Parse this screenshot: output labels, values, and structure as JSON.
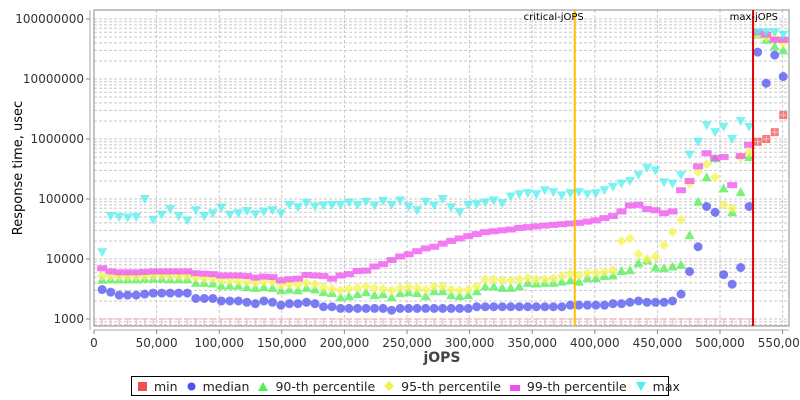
{
  "chart_data": {
    "type": "scatter",
    "title": "",
    "xlabel": "jOPS",
    "ylabel": "Response time, usec",
    "xscale": "linear",
    "yscale": "log",
    "xlim": [
      0,
      556000
    ],
    "ylim": [
      700,
      150000000
    ],
    "grid": true,
    "legend_position": "bottom",
    "x_ticks": [
      "0",
      "50,000",
      "100,000",
      "150,000",
      "200,000",
      "250,000",
      "300,000",
      "350,000",
      "400,000",
      "450,000",
      "500,000",
      "550,000"
    ],
    "y_ticks": [
      "1000",
      "10000",
      "100000",
      "1000000",
      "10000000",
      "100000000"
    ],
    "annotations": [
      {
        "label": "critical-jOPS",
        "x": 384000,
        "color": "#ffc000"
      },
      {
        "label": "max-jOPS",
        "x": 526400,
        "color": "#e00000"
      }
    ],
    "x": [
      6500,
      13300,
      20100,
      26900,
      33700,
      40500,
      47300,
      54100,
      60900,
      67700,
      74500,
      81300,
      88100,
      94900,
      101700,
      108500,
      115300,
      122100,
      128900,
      135700,
      142500,
      149300,
      156100,
      162900,
      169700,
      176500,
      183300,
      190100,
      196900,
      203700,
      210500,
      217300,
      224100,
      230900,
      237700,
      244500,
      251300,
      258100,
      264900,
      271700,
      278500,
      285300,
      292100,
      298900,
      305700,
      312500,
      319300,
      326100,
      332900,
      339700,
      346500,
      353300,
      360100,
      366900,
      373700,
      380500,
      387300,
      394100,
      400900,
      407700,
      414500,
      421300,
      428100,
      434900,
      441700,
      448500,
      455300,
      462100,
      468900,
      475700,
      482500,
      489300,
      496100,
      502900,
      509700,
      516500,
      523300,
      530100,
      536900,
      543700,
      550500
    ],
    "series": [
      {
        "name": "min",
        "color": "#f05050",
        "marker": "square",
        "values": [
          1000,
          1000,
          1000,
          1000,
          1000,
          1000,
          1000,
          1000,
          1000,
          1000,
          1000,
          1000,
          1000,
          1000,
          1000,
          1000,
          1000,
          1000,
          1000,
          1000,
          1000,
          1000,
          1000,
          1000,
          1000,
          1000,
          1000,
          1000,
          1000,
          1000,
          1000,
          1000,
          1000,
          1000,
          1000,
          1000,
          1000,
          1000,
          1000,
          1000,
          1000,
          1000,
          1000,
          1000,
          1000,
          1000,
          1000,
          1000,
          1000,
          1000,
          1000,
          1000,
          1000,
          1000,
          1000,
          1000,
          1000,
          1000,
          1000,
          1000,
          1000,
          1000,
          1000,
          1000,
          1000,
          1000,
          1000,
          1000,
          1000,
          1000,
          1000,
          1000,
          1000,
          1000,
          1000,
          1000,
          1000,
          900000,
          1000000,
          1300000,
          2500000
        ]
      },
      {
        "name": "median",
        "color": "#5050f0",
        "marker": "circle",
        "values": [
          3100,
          2800,
          2500,
          2500,
          2500,
          2600,
          2700,
          2700,
          2700,
          2700,
          2700,
          2200,
          2200,
          2200,
          2000,
          2000,
          2000,
          1900,
          1800,
          2000,
          1900,
          1700,
          1800,
          1800,
          1900,
          1800,
          1600,
          1600,
          1500,
          1500,
          1500,
          1500,
          1500,
          1500,
          1400,
          1500,
          1500,
          1500,
          1500,
          1500,
          1500,
          1500,
          1500,
          1500,
          1600,
          1600,
          1600,
          1600,
          1600,
          1600,
          1600,
          1600,
          1600,
          1600,
          1600,
          1700,
          1700,
          1700,
          1700,
          1700,
          1800,
          1800,
          1900,
          2000,
          1900,
          1900,
          1900,
          2000,
          2600,
          6200,
          16000,
          75000,
          60000,
          5500,
          3800,
          7200,
          75000,
          28000000,
          8500000,
          25000000,
          11000000
        ]
      },
      {
        "name": "90-th percentile",
        "color": "#50f050",
        "marker": "triangle-up",
        "values": [
          4500,
          4600,
          4600,
          4600,
          4600,
          4700,
          4700,
          4700,
          4600,
          4600,
          4600,
          4000,
          4000,
          3900,
          3600,
          3600,
          3600,
          3400,
          3300,
          3400,
          3300,
          3000,
          3100,
          3000,
          3300,
          3100,
          2800,
          2700,
          2300,
          2400,
          2600,
          2800,
          2500,
          2600,
          2300,
          2700,
          2800,
          2700,
          2400,
          2900,
          2900,
          2500,
          2400,
          2500,
          2900,
          3500,
          3500,
          3300,
          3300,
          3500,
          4000,
          3900,
          4000,
          4000,
          4200,
          4400,
          4200,
          4800,
          4800,
          5200,
          5300,
          6300,
          6500,
          8500,
          9500,
          7200,
          7000,
          7500,
          8000,
          25000,
          90000,
          230000,
          480000,
          150000,
          60000,
          130000,
          500000,
          55000000,
          45000000,
          35000000,
          30000000
        ]
      },
      {
        "name": "95-th percentile",
        "color": "#f5f550",
        "marker": "diamond",
        "values": [
          5200,
          5200,
          5100,
          5100,
          5100,
          5200,
          5300,
          5300,
          5200,
          5200,
          5200,
          4900,
          4700,
          4700,
          4400,
          4400,
          4300,
          4200,
          4000,
          4200,
          4200,
          3700,
          3800,
          3700,
          4000,
          3800,
          3400,
          3200,
          3000,
          3200,
          3300,
          3500,
          3300,
          3200,
          3000,
          3300,
          3400,
          3300,
          3100,
          3500,
          3500,
          3100,
          3000,
          3100,
          3500,
          4500,
          4600,
          4400,
          4400,
          4600,
          4800,
          4600,
          4600,
          4700,
          5200,
          5700,
          5300,
          5800,
          5900,
          6100,
          6500,
          20000,
          22000,
          12000,
          10000,
          11000,
          17000,
          28000,
          45000,
          180000,
          280000,
          380000,
          230000,
          80000,
          70000,
          490000,
          600000,
          55000000,
          50000000,
          50000000,
          40000000
        ]
      },
      {
        "name": "99-th percentile",
        "color": "#f050f0",
        "marker": "square-cross",
        "values": [
          7000,
          6200,
          6000,
          6000,
          6000,
          6100,
          6200,
          6200,
          6200,
          6200,
          6200,
          5800,
          5700,
          5600,
          5300,
          5300,
          5300,
          5200,
          4900,
          5100,
          5000,
          4400,
          4600,
          4700,
          5400,
          5300,
          5200,
          4700,
          5300,
          5600,
          6300,
          6400,
          7500,
          8200,
          9600,
          11000,
          12000,
          13500,
          15000,
          16000,
          18000,
          20000,
          22000,
          24000,
          26000,
          28000,
          29000,
          30000,
          31000,
          33000,
          34000,
          35000,
          36000,
          37000,
          38000,
          39000,
          40000,
          42000,
          44000,
          48000,
          52000,
          62000,
          78000,
          80000,
          68000,
          65000,
          58000,
          62000,
          140000,
          200000,
          350000,
          580000,
          480000,
          500000,
          170000,
          520000,
          800000,
          60000000,
          55000000,
          45000000,
          45000000
        ]
      },
      {
        "name": "max",
        "color": "#50f0f0",
        "marker": "triangle-down",
        "values": [
          13000,
          52000,
          50000,
          49000,
          50000,
          100000,
          45000,
          55000,
          68000,
          52000,
          44000,
          65000,
          52000,
          58000,
          72000,
          55000,
          58000,
          63000,
          56000,
          62000,
          65000,
          58000,
          80000,
          73000,
          86000,
          75000,
          78000,
          80000,
          80000,
          88000,
          80000,
          90000,
          78000,
          93000,
          80000,
          95000,
          75000,
          65000,
          90000,
          78000,
          100000,
          73000,
          60000,
          80000,
          82000,
          88000,
          95000,
          85000,
          110000,
          120000,
          125000,
          120000,
          140000,
          130000,
          115000,
          125000,
          130000,
          120000,
          125000,
          140000,
          160000,
          180000,
          200000,
          250000,
          330000,
          300000,
          190000,
          180000,
          250000,
          550000,
          900000,
          1700000,
          1300000,
          1600000,
          1000000,
          2000000,
          1600000,
          60000000,
          60000000,
          60000000,
          55000000
        ]
      }
    ]
  },
  "annotations": {
    "critical_label": "critical-jOPS",
    "max_label": "max-jOPS"
  },
  "axes": {
    "xlabel": "jOPS",
    "ylabel": "Response time, usec"
  },
  "legend": {
    "items": [
      {
        "label": "min",
        "color": "#f05050",
        "icon": "square-icon"
      },
      {
        "label": "median",
        "color": "#5050f0",
        "icon": "circle-icon"
      },
      {
        "label": "90-th percentile",
        "color": "#50f050",
        "icon": "triangle-up-icon"
      },
      {
        "label": "95-th percentile",
        "color": "#f0f050",
        "icon": "diamond-icon"
      },
      {
        "label": "99-th percentile",
        "color": "#f050f0",
        "icon": "dash-icon"
      },
      {
        "label": "max",
        "color": "#50f0f0",
        "icon": "triangle-down-icon"
      }
    ]
  }
}
